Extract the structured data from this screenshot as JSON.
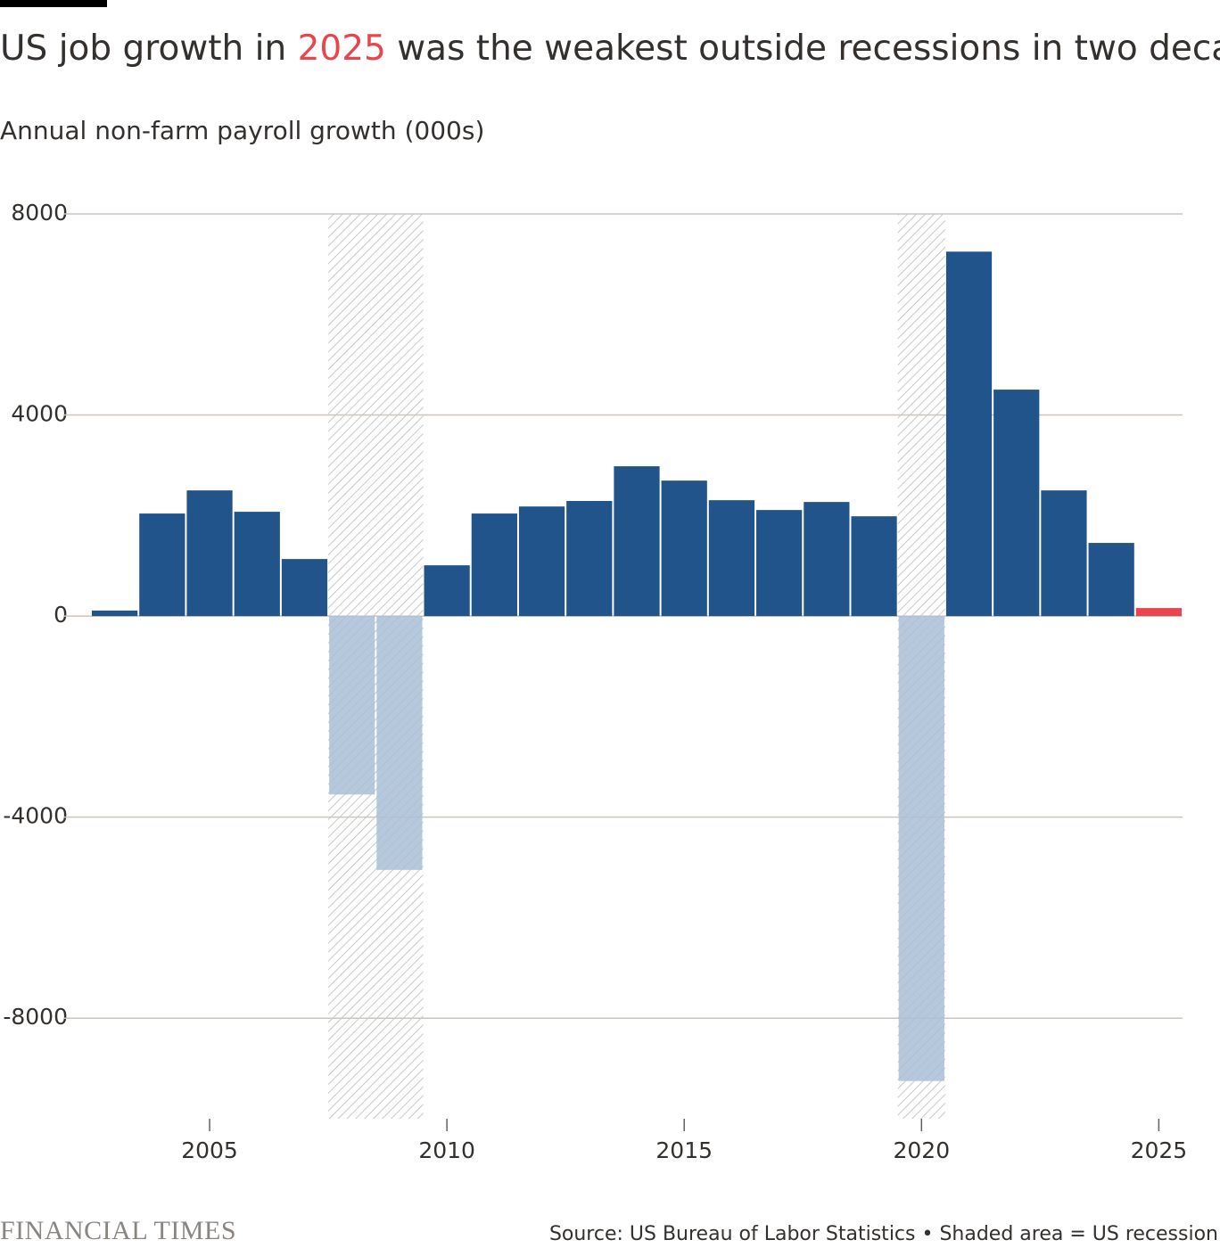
{
  "chart_data": {
    "type": "bar",
    "title_parts": [
      "US job growth in ",
      "2025",
      " was the weakest outside recessions in two decades"
    ],
    "subtitle": "Annual non-farm payroll growth (000s)",
    "x": [
      2003,
      2004,
      2005,
      2006,
      2007,
      2008,
      2009,
      2010,
      2011,
      2012,
      2013,
      2014,
      2015,
      2016,
      2017,
      2018,
      2019,
      2020,
      2021,
      2022,
      2023,
      2024,
      2025
    ],
    "values": [
      110,
      2040,
      2500,
      2075,
      1135,
      -3550,
      -5050,
      1010,
      2040,
      2180,
      2290,
      2980,
      2695,
      2305,
      2110,
      2270,
      1985,
      -9250,
      7250,
      4505,
      2500,
      1455,
      160
    ],
    "color": "#20548a",
    "recession_color": "#a9bfd6",
    "highlight_color": "#e8454d",
    "highlight_x": 2025,
    "recessions": [
      [
        2008,
        2009
      ],
      [
        2020,
        2020
      ]
    ],
    "xlim": [
      2002.5,
      2025.5
    ],
    "xticks": [
      2005,
      2010,
      2015,
      2020,
      2025
    ],
    "ylim": [
      -10000,
      8000
    ],
    "yticks": [
      8000,
      4000,
      0,
      -4000,
      -8000
    ],
    "grid": true,
    "brand": "FINANCIAL TIMES",
    "source": "Source: US Bureau of Labor Statistics • Shaded area = US recession"
  }
}
